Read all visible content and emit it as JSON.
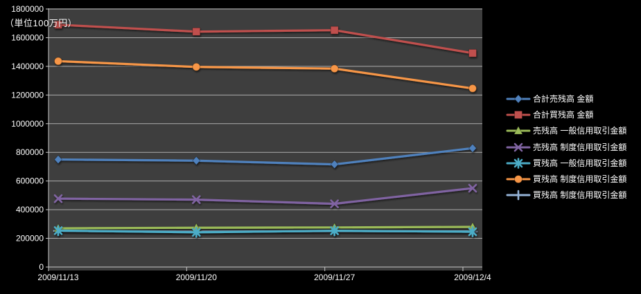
{
  "window": {
    "background": "#000000",
    "plot_background": "#3E3E3E"
  },
  "chart_data": {
    "type": "line",
    "unit_label": "（単位100万円）",
    "categories": [
      "2009/11/13",
      "2009/11/20",
      "2009/11/27",
      "2009/12/4"
    ],
    "y_axis": {
      "min": 0,
      "max": 1800000,
      "step": 200000,
      "tick_labels": [
        "0",
        "200000",
        "400000",
        "600000",
        "800000",
        "1000000",
        "1200000",
        "1400000",
        "1600000",
        "1800000"
      ]
    },
    "grid": "horizontal",
    "legend_position": "right",
    "plot": {
      "bg": "#3E3E3E",
      "gridline_color": "#C9C9C9",
      "axis_color": "#C9C9C9",
      "text_color": "#FFFFFF"
    },
    "series": [
      {
        "name": "合計売残高 金額",
        "color": "#4F81BD",
        "marker": "diamond",
        "values": [
          750000,
          742000,
          716000,
          829000
        ]
      },
      {
        "name": "合計買残高 金額",
        "color": "#C0504D",
        "marker": "square",
        "values": [
          1690000,
          1642000,
          1652000,
          1492000
        ]
      },
      {
        "name": "売残高 一般信用取引金額",
        "color": "#9BBB59",
        "marker": "triangle",
        "values": [
          270000,
          274000,
          276000,
          280000
        ]
      },
      {
        "name": "売残高 制度信用取引金額",
        "color": "#8064A2",
        "marker": "x",
        "values": [
          477000,
          470000,
          441000,
          550000
        ]
      },
      {
        "name": "買残高 一般信用取引金額",
        "color": "#4BACC6",
        "marker": "asterisk",
        "values": [
          254000,
          242000,
          253000,
          246000
        ]
      },
      {
        "name": "買残高 制度信用取引金額",
        "color": "#F79646",
        "marker": "circle",
        "values": [
          1436000,
          1396000,
          1384000,
          1246000
        ]
      },
      {
        "name": "買残高 制度信用取引金額",
        "color": "#95B3D7",
        "marker": "plus",
        "values": [
          252000,
          246000,
          251000,
          248000
        ]
      }
    ]
  }
}
